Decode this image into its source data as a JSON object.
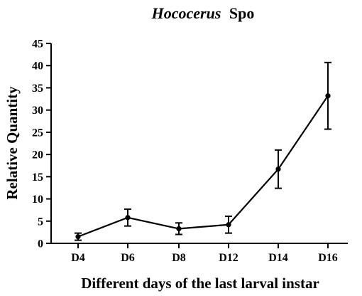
{
  "chart_data": {
    "type": "line",
    "title_italic": "Hococerus",
    "title_rest": "Spo",
    "xlabel": "Different days of the last larval instar",
    "ylabel": "Relative Quantity",
    "categories": [
      "D4",
      "D6",
      "D8",
      "D12",
      "D14",
      "D16"
    ],
    "values": [
      1.5,
      5.8,
      3.3,
      4.2,
      16.7,
      33.2
    ],
    "error_bars": [
      0.8,
      1.9,
      1.3,
      1.9,
      4.3,
      7.5
    ],
    "ylim": [
      0,
      45
    ],
    "yticks": [
      0,
      5,
      10,
      15,
      20,
      25,
      30,
      35,
      40,
      45
    ],
    "grid": false,
    "colors": {
      "line": "#000000",
      "axis": "#000000",
      "background": "#ffffff"
    }
  }
}
